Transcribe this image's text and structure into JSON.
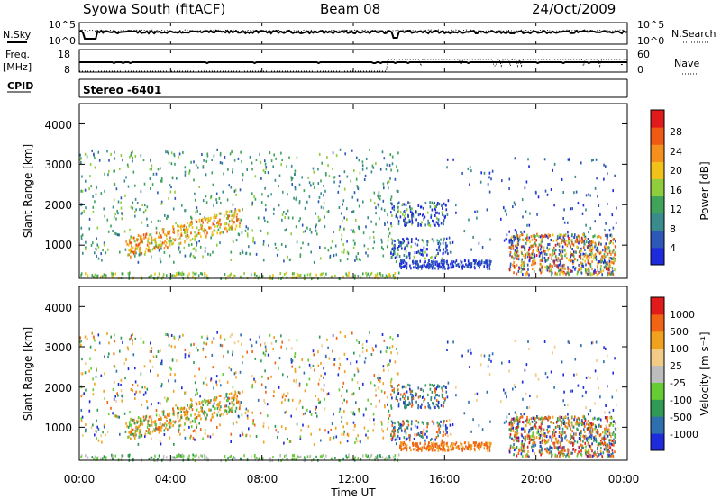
{
  "header": {
    "station": "Syowa South (fitACF)",
    "beam": "Beam 08",
    "date": "24/Oct/2009"
  },
  "labels": {
    "nsky": "N.Sky",
    "nsearch": "N.Search",
    "freq_line1": "Freq.",
    "freq_line2": "[MHz]",
    "nave": "Nave",
    "cpid": "CPID",
    "cpid_value": "Stereo -6401",
    "time_axis": "Time UT",
    "slant_range": "Slant Range [km]",
    "power_label": "Power [dB]",
    "velocity_label": "Velocity [m s⁻¹]"
  },
  "colors": {
    "power_scale": [
      "#1e2bdc",
      "#2e58b8",
      "#3a8c8c",
      "#3fa35a",
      "#8fcd3c",
      "#f0c21a",
      "#f58f1e",
      "#ee5a14",
      "#e11b1b"
    ],
    "velocity_scale": [
      "#e11b1b",
      "#f06414",
      "#f0a21e",
      "#f2cc86",
      "#bdbdbd",
      "#66cc33",
      "#2e9a55",
      "#2e6fae",
      "#1e2bdc"
    ]
  },
  "chart_data": {
    "type": "heatmap",
    "time_ticks": [
      "00:00",
      "04:00",
      "08:00",
      "12:00",
      "16:00",
      "20:00",
      "00:00"
    ],
    "time_range_hours": [
      0,
      24
    ],
    "noise": {
      "tick_labels": [
        "10^5",
        "10^0"
      ],
      "right_tick_labels": [
        "10^5",
        "10^0"
      ]
    },
    "freq": {
      "left_ticks": [
        "18",
        "8"
      ],
      "right_ticks": [
        "60",
        "0"
      ]
    },
    "power": {
      "range_ticks": [
        "1000",
        "2000",
        "3000",
        "4000"
      ],
      "range_values": [
        1000,
        2000,
        3000,
        4000
      ],
      "range_km": [
        180,
        4500
      ],
      "colorbar_ticks": [
        "4",
        "8",
        "12",
        "16",
        "20",
        "24",
        "28"
      ],
      "colorbar_range": [
        0,
        32
      ]
    },
    "velocity": {
      "range_ticks": [
        "1000",
        "2000",
        "3000",
        "4000"
      ],
      "range_values": [
        1000,
        2000,
        3000,
        4000
      ],
      "range_km": [
        180,
        4500
      ],
      "colorbar_ticks": [
        "1000",
        "500",
        "100",
        "25",
        "-25",
        "-100",
        "-500",
        "-1000"
      ]
    }
  }
}
